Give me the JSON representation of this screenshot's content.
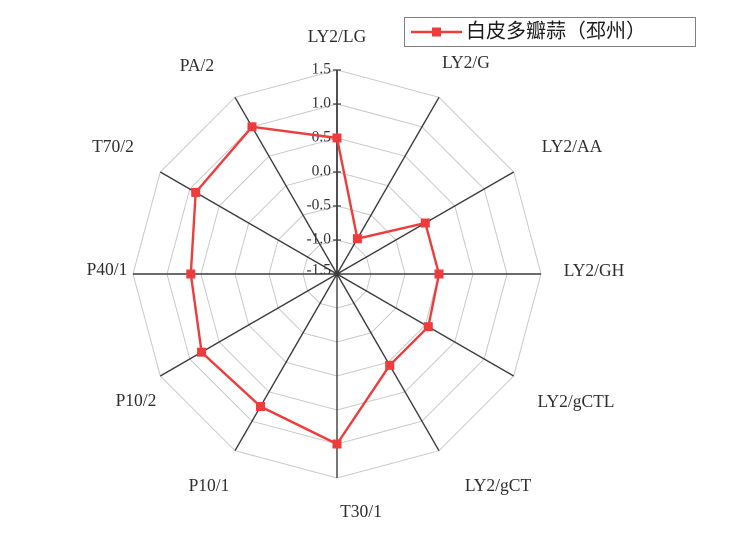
{
  "chart_data": {
    "type": "radar",
    "title": "",
    "legend": {
      "label": "白皮多瓣蒜（邳州）",
      "position": "top-right",
      "marker": "filled-square",
      "line_color": "#ee3c3c"
    },
    "categories": [
      "LY2/LG",
      "LY2/G",
      "LY2/AA",
      "LY2/GH",
      "LY2/gCTL",
      "LY2/gCT",
      "T30/1",
      "P10/1",
      "P10/2",
      "P40/1",
      "T70/2",
      "PA/2"
    ],
    "series": [
      {
        "name": "白皮多瓣蒜（邳州）",
        "color": "#ee3c3c",
        "values": [
          0.5,
          -0.9,
          0.0,
          0.0,
          0.05,
          0.05,
          1.0,
          0.75,
          0.8,
          0.65,
          0.9,
          1.0
        ]
      }
    ],
    "radial_axis": {
      "min": -1.5,
      "max": 1.5,
      "tick_step": 0.5,
      "tick_labels": [
        "1.5",
        "1.0",
        "0.5",
        "0.0",
        "-0.5",
        "-1.0",
        "-1.5"
      ],
      "tick_values": [
        1.5,
        1.0,
        0.5,
        0.0,
        -0.5,
        -1.0,
        -1.5
      ]
    },
    "grid": {
      "shape": "polygon",
      "rings": true,
      "ring_color": "#c9c9c9",
      "spoke_color": "#3c3c3c"
    },
    "colors": {
      "series_red": "#ee3c3c",
      "label_text": "#333333",
      "legend_border": "#808080",
      "background": "#ffffff"
    }
  }
}
